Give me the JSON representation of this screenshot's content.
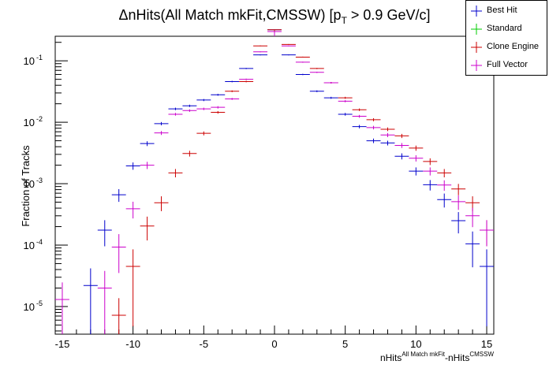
{
  "chart_data": {
    "type": "scatter",
    "title": "ΔnHits(All Match mkFit,CMSSW) [p",
    "title_sub": "T",
    "title_tail": " > 0.9 GeV/c]",
    "xlabel_main": "nHits",
    "xlabel_sup1": "All Match mkFit",
    "xlabel_mid": "-nHits",
    "xlabel_sup2": "CMSSW",
    "ylabel": "Fraction of Tracks",
    "xlim": [
      -15.5,
      15.5
    ],
    "ylim_log10": [
      -5.45,
      -0.6
    ],
    "y_scale": "log",
    "grid": false,
    "legend_position": "top-right",
    "x_ticks": [
      -15,
      -10,
      -5,
      0,
      5,
      10,
      15
    ],
    "y_ticks": [
      {
        "exp": -5,
        "label": "10",
        "sup": "-5"
      },
      {
        "exp": -4,
        "label": "10",
        "sup": "-4"
      },
      {
        "exp": -3,
        "label": "10",
        "sup": "-3"
      },
      {
        "exp": -2,
        "label": "10",
        "sup": "-2"
      },
      {
        "exp": -1,
        "label": "10",
        "sup": "-1"
      }
    ],
    "series": [
      {
        "name": "Best Hit",
        "color": "#0000cc",
        "points": [
          [
            -13,
            2.2e-05
          ],
          [
            -12,
            0.000175
          ],
          [
            -11,
            0.00066
          ],
          [
            -10,
            0.00195
          ],
          [
            -9,
            0.0045
          ],
          [
            -8,
            0.0095
          ],
          [
            -7,
            0.0165
          ],
          [
            -6,
            0.0185
          ],
          [
            -5,
            0.023
          ],
          [
            -4,
            0.028
          ],
          [
            -3,
            0.046
          ],
          [
            -2,
            0.075
          ],
          [
            -1,
            0.125
          ],
          [
            0,
            0.32
          ],
          [
            1,
            0.125
          ],
          [
            2,
            0.06
          ],
          [
            3,
            0.032
          ],
          [
            4,
            0.025
          ],
          [
            5,
            0.0135
          ],
          [
            6,
            0.0085
          ],
          [
            7,
            0.005
          ],
          [
            8,
            0.0046
          ],
          [
            9,
            0.0028
          ],
          [
            10,
            0.0016
          ],
          [
            11,
            0.00096
          ],
          [
            12,
            0.00055
          ],
          [
            13,
            0.00025
          ],
          [
            14,
            0.000105
          ],
          [
            15,
            4.5e-05
          ]
        ]
      },
      {
        "name": "Standard",
        "color": "#00cc00",
        "points": []
      },
      {
        "name": "Clone Engine",
        "color": "#cc0000",
        "points": [
          [
            -11,
            7.2e-06
          ],
          [
            -10,
            4.5e-05
          ],
          [
            -9,
            0.000205
          ],
          [
            -8,
            0.00049
          ],
          [
            -7,
            0.0015
          ],
          [
            -6,
            0.0031
          ],
          [
            -5,
            0.0066
          ],
          [
            -4,
            0.0145
          ],
          [
            -3,
            0.032
          ],
          [
            -2,
            0.046
          ],
          [
            -1,
            0.175
          ],
          [
            0,
            0.32
          ],
          [
            1,
            0.185
          ],
          [
            2,
            0.115
          ],
          [
            3,
            0.075
          ],
          [
            4,
            0.044
          ],
          [
            5,
            0.025
          ],
          [
            6,
            0.016
          ],
          [
            7,
            0.011
          ],
          [
            8,
            0.0077
          ],
          [
            9,
            0.006
          ],
          [
            10,
            0.0038
          ],
          [
            11,
            0.0023
          ],
          [
            12,
            0.0015
          ],
          [
            13,
            0.00082
          ],
          [
            14,
            0.00049
          ],
          [
            15,
            0.000175
          ]
        ]
      },
      {
        "name": "Full Vector",
        "color": "#cc00cc",
        "points": [
          [
            -15,
            1.3e-05
          ],
          [
            -12,
            2e-05
          ],
          [
            -11,
            9.3e-05
          ],
          [
            -10,
            0.00039
          ],
          [
            -9,
            0.002
          ],
          [
            -8,
            0.0067
          ],
          [
            -7,
            0.0135
          ],
          [
            -6,
            0.0155
          ],
          [
            -5,
            0.0165
          ],
          [
            -4,
            0.0175
          ],
          [
            -3,
            0.024
          ],
          [
            -2,
            0.05
          ],
          [
            -1,
            0.14
          ],
          [
            0,
            0.3
          ],
          [
            1,
            0.175
          ],
          [
            2,
            0.095
          ],
          [
            3,
            0.065
          ],
          [
            4,
            0.044
          ],
          [
            5,
            0.022
          ],
          [
            6,
            0.0125
          ],
          [
            7,
            0.0082
          ],
          [
            8,
            0.0062
          ],
          [
            9,
            0.0042
          ],
          [
            10,
            0.0026
          ],
          [
            11,
            0.0016
          ],
          [
            12,
            0.00095
          ],
          [
            13,
            0.00051
          ],
          [
            14,
            0.0003
          ],
          [
            15,
            0.000175
          ]
        ]
      }
    ]
  }
}
